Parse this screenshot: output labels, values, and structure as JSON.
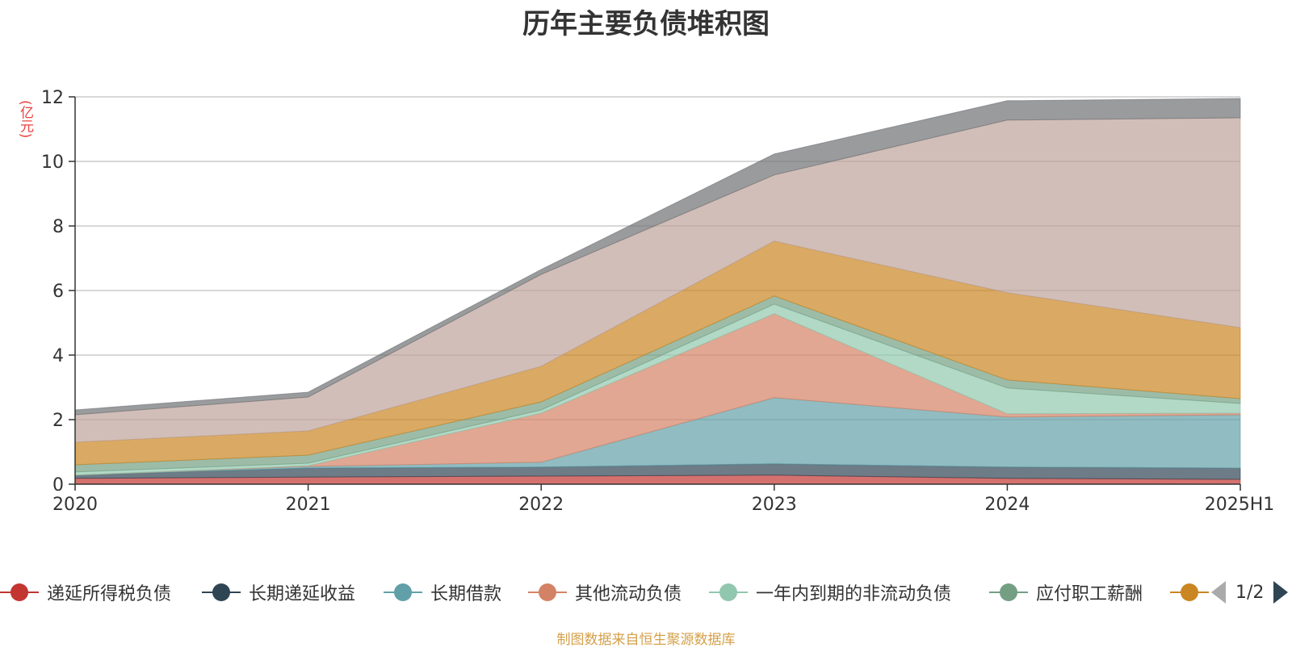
{
  "title": "历年主要负债堆积图",
  "unit": "(亿元)",
  "source": "制图数据来自恒生聚源数据库",
  "pager": "1/2",
  "chart_data": {
    "type": "area",
    "stacked": true,
    "categories": [
      "2020",
      "2021",
      "2022",
      "2023",
      "2024",
      "2025H1"
    ],
    "yticks": [
      "0",
      "2",
      "4",
      "6",
      "8",
      "10",
      "12"
    ],
    "ylim": [
      0,
      12
    ],
    "grid": true,
    "legend_position": "bottom",
    "series": [
      {
        "name": "递延所得税负债",
        "color": "#c23531",
        "values": [
          0.18,
          0.22,
          0.25,
          0.28,
          0.18,
          0.15
        ]
      },
      {
        "name": "长期递延收益",
        "color": "#2f4554",
        "values": [
          0.1,
          0.28,
          0.28,
          0.35,
          0.35,
          0.35
        ]
      },
      {
        "name": "长期借款",
        "color": "#61a0a8",
        "values": [
          0.0,
          0.05,
          0.15,
          2.05,
          1.55,
          1.65
        ]
      },
      {
        "name": "其他流动负债",
        "color": "#d48265",
        "values": [
          0.0,
          0.02,
          1.52,
          2.6,
          0.1,
          0.05
        ]
      },
      {
        "name": "一年内到期的非流动负债",
        "color": "#91c7ae",
        "values": [
          0.1,
          0.08,
          0.1,
          0.3,
          0.8,
          0.3
        ]
      },
      {
        "name": "应付职工薪酬",
        "color": "#749f83",
        "values": [
          0.22,
          0.25,
          0.25,
          0.25,
          0.25,
          0.15
        ]
      },
      {
        "name": "",
        "color": "#ca8622",
        "values": [
          0.7,
          0.75,
          1.1,
          1.7,
          2.7,
          2.2
        ]
      },
      {
        "name": "",
        "color": "#bda29a",
        "values": [
          0.85,
          1.05,
          2.85,
          2.05,
          5.35,
          6.5
        ]
      },
      {
        "name": "",
        "color": "#6e7074",
        "values": [
          0.15,
          0.15,
          0.15,
          0.65,
          0.6,
          0.6
        ]
      }
    ]
  },
  "legend": [
    {
      "label": "递延所得税负债",
      "color": "#c23531"
    },
    {
      "label": "长期递延收益",
      "color": "#2f4554"
    },
    {
      "label": "长期借款",
      "color": "#61a0a8"
    },
    {
      "label": "其他流动负债",
      "color": "#d48265"
    },
    {
      "label": "一年内到期的非流动负债",
      "color": "#91c7ae"
    },
    {
      "label": "应付职工薪酬",
      "color": "#749f83"
    },
    {
      "label": "",
      "color": "#ca8622"
    }
  ]
}
